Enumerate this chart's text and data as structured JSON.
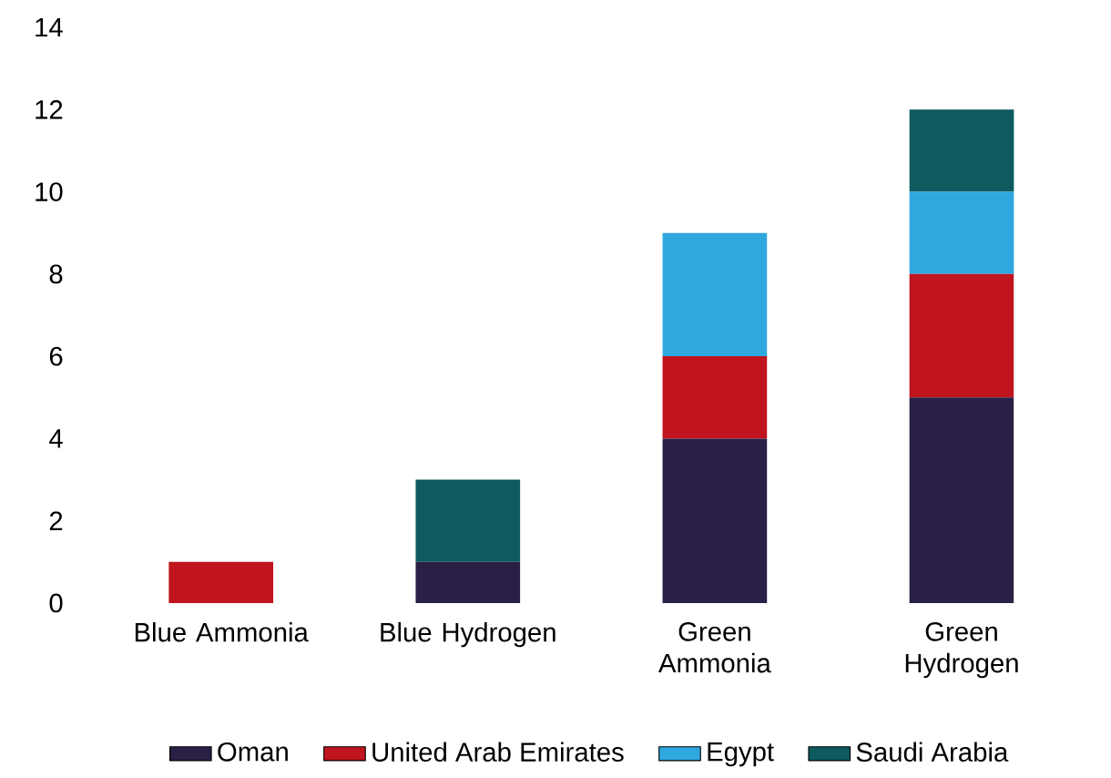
{
  "chart_data": {
    "type": "bar",
    "stacked": true,
    "categories": [
      "Blue Ammonia",
      "Blue Hydrogen",
      "Green Ammonia",
      "Green Hydrogen"
    ],
    "series": [
      {
        "name": "Oman",
        "color": "#2a1f45",
        "values": [
          0,
          1,
          4,
          5
        ]
      },
      {
        "name": "United Arab Emirates",
        "color": "#c0141e",
        "values": [
          1,
          0,
          2,
          3
        ]
      },
      {
        "name": "Egypt",
        "color": "#2fa8e0",
        "values": [
          0,
          0,
          3,
          2
        ]
      },
      {
        "name": "Saudi Arabia",
        "color": "#0e5a5e",
        "values": [
          0,
          2,
          0,
          2
        ]
      }
    ],
    "ylim": [
      0,
      14
    ],
    "yticks": [
      0,
      2,
      4,
      6,
      8,
      10,
      12,
      14
    ],
    "legend": "bottom"
  }
}
